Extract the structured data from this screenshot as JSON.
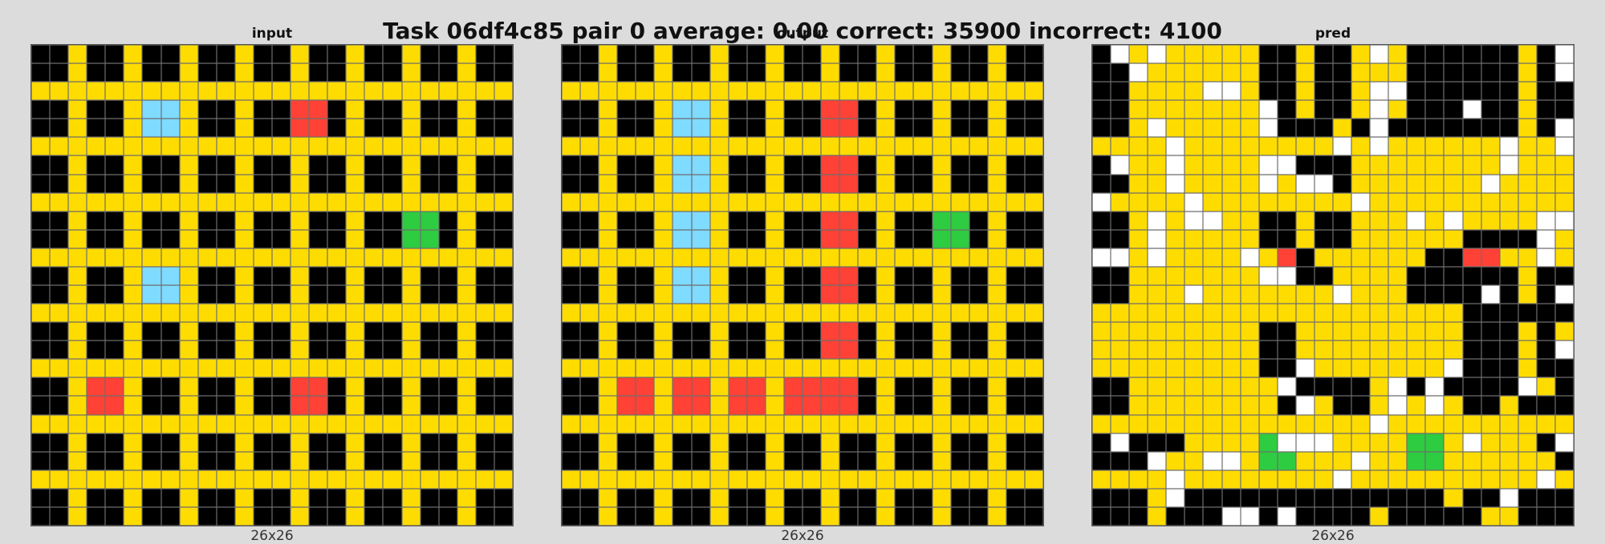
{
  "title": "Task 06df4c85 pair 0 average: 0.00 correct: 35900 incorrect: 4100",
  "palette": {
    "0": "#000000",
    "1": "#ffffff",
    "2": "#ff4136",
    "3": "#2ecc40",
    "4": "#ffdc00",
    "8": "#7fdbff"
  },
  "panels": [
    {
      "label": "input",
      "size": "26x26",
      "rows": [
        "00400400400400400400400400",
        "00400400400400400400400400",
        "44444444444444444444444444",
        "00400488400400220400400400",
        "00400488400400220400400400",
        "44444444444444444444444444",
        "00400400400400400400400400",
        "00400400400400400400400400",
        "44444444444444444444444444",
        "00400400400400400400330400",
        "00400400400400400400330400",
        "44444444444444444444444444",
        "00400488400400400400400400",
        "00400488400400400400400400",
        "44444444444444444444444444",
        "00400400400400400400400400",
        "00400400400400400400400400",
        "44444444444444444444444444",
        "00422400400400220400400400",
        "00422400400400220400400400",
        "44444444444444444444444444",
        "00400400400400400400400400",
        "00400400400400400400400400",
        "44444444444444444444444444",
        "00400400400400400400400400",
        "00400400400400400400400400"
      ]
    },
    {
      "label": "output",
      "size": "26x26",
      "rows": [
        "00400400400400400400400400",
        "00400400400400400400400400",
        "44444444444444444444444444",
        "00400488400400220400400400",
        "00400488400400220400400400",
        "44444444444444444444444444",
        "00400488400400220400400400",
        "00400488400400220400400400",
        "44444444444444444444444444",
        "00400488400400220400330400",
        "00400488400400220400330400",
        "44444444444444444444444444",
        "00400488400400220400400400",
        "00400488400400220400400400",
        "44444444444444444444444444",
        "00400400400400220400400400",
        "00400400400400220400400400",
        "44444444444444444444444444",
        "00422422422422220400400400",
        "00422422422422220400400400",
        "44444444444444444444444444",
        "00400400400400400400400400",
        "00400400400400400400400400",
        "44444444444444444444444444",
        "00400400400400400400400400",
        "00400400400400400400400400"
      ]
    },
    {
      "label": "pred",
      "size": "26x26",
      "rows": [
        "01414444400400414000000401",
        "00144444400400444000000401",
        "00444411400400411000000400",
        "00444444410400414000100400",
        "00414444410004010000000401",
        "44441444444441414444441441",
        "01441444411000444444441444",
        "00441444414110444444414444",
        "14444144444444144444444444",
        "00414114400400444141444411",
        "00414444400400444444000014",
        "11414444142044444400224414",
        "00444444411004444000000400",
        "00444144444441444000010401",
        "44444444444444444444000000",
        "44444444400444444444000404",
        "44444444400444444444000401",
        "44444444400144444441000400",
        "00444444441000041010000140",
        "00444444440140041414004000",
        "44444444444444414444444444",
        "01000444431114444334144401",
        "00014411433444144334444440",
        "44441444444441444444444414",
        "00041000000000000004001000",
        "00040001101000040000044000"
      ]
    }
  ]
}
